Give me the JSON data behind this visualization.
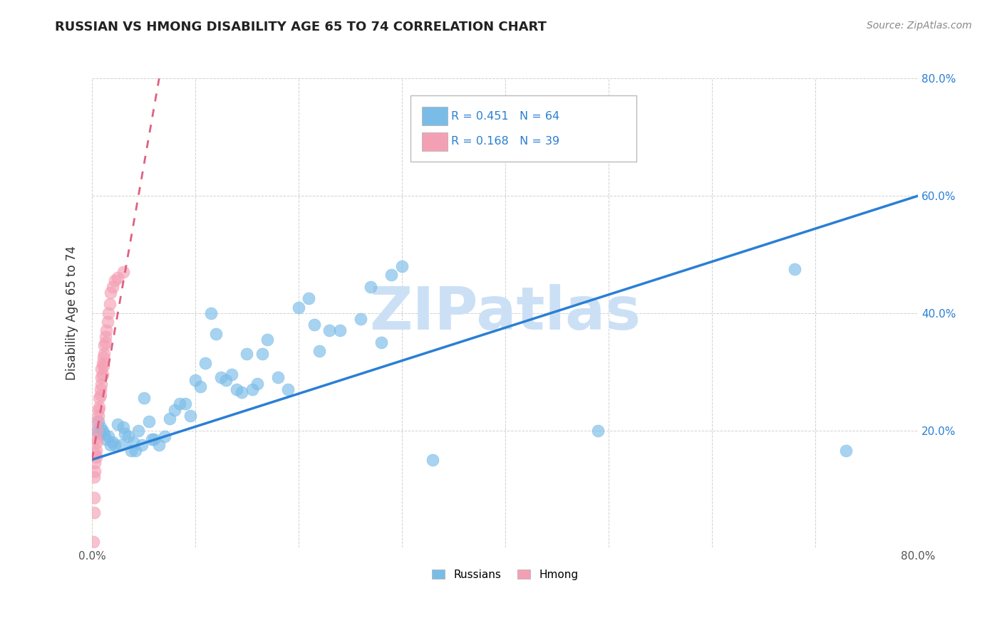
{
  "title": "RUSSIAN VS HMONG DISABILITY AGE 65 TO 74 CORRELATION CHART",
  "source": "Source: ZipAtlas.com",
  "ylabel": "Disability Age 65 to 74",
  "xlim": [
    0.0,
    0.8
  ],
  "ylim": [
    0.0,
    0.8
  ],
  "xtick_positions": [
    0.0,
    0.1,
    0.2,
    0.3,
    0.4,
    0.5,
    0.6,
    0.7,
    0.8
  ],
  "xticklabels": [
    "0.0%",
    "",
    "",
    "",
    "",
    "",
    "",
    "",
    "80.0%"
  ],
  "ytick_positions": [
    0.0,
    0.2,
    0.4,
    0.6,
    0.8
  ],
  "yticklabels_right": [
    "",
    "20.0%",
    "40.0%",
    "60.0%",
    "80.0%"
  ],
  "russian_R": 0.451,
  "russian_N": 64,
  "hmong_R": 0.168,
  "hmong_N": 39,
  "russian_color": "#7abce8",
  "hmong_color": "#f4a0b4",
  "trendline_russian_color": "#2a7fd4",
  "trendline_hmong_color": "#e06080",
  "watermark": "ZIPatlas",
  "watermark_color": "#cce0f5",
  "russians_x": [
    0.005,
    0.006,
    0.007,
    0.008,
    0.01,
    0.012,
    0.014,
    0.016,
    0.018,
    0.02,
    0.022,
    0.025,
    0.028,
    0.03,
    0.032,
    0.035,
    0.038,
    0.04,
    0.042,
    0.045,
    0.048,
    0.05,
    0.055,
    0.058,
    0.06,
    0.065,
    0.07,
    0.075,
    0.08,
    0.085,
    0.09,
    0.095,
    0.1,
    0.105,
    0.11,
    0.115,
    0.12,
    0.125,
    0.13,
    0.135,
    0.14,
    0.145,
    0.15,
    0.155,
    0.16,
    0.165,
    0.17,
    0.18,
    0.19,
    0.2,
    0.21,
    0.215,
    0.22,
    0.23,
    0.24,
    0.26,
    0.27,
    0.28,
    0.29,
    0.3,
    0.33,
    0.49,
    0.68,
    0.73
  ],
  "russians_y": [
    0.2,
    0.215,
    0.195,
    0.205,
    0.2,
    0.195,
    0.185,
    0.19,
    0.175,
    0.18,
    0.175,
    0.21,
    0.175,
    0.205,
    0.195,
    0.19,
    0.165,
    0.18,
    0.165,
    0.2,
    0.175,
    0.255,
    0.215,
    0.185,
    0.185,
    0.175,
    0.19,
    0.22,
    0.235,
    0.245,
    0.245,
    0.225,
    0.285,
    0.275,
    0.315,
    0.4,
    0.365,
    0.29,
    0.285,
    0.295,
    0.27,
    0.265,
    0.33,
    0.27,
    0.28,
    0.33,
    0.355,
    0.29,
    0.27,
    0.41,
    0.425,
    0.38,
    0.335,
    0.37,
    0.37,
    0.39,
    0.445,
    0.35,
    0.465,
    0.48,
    0.15,
    0.2,
    0.475,
    0.165
  ],
  "hmong_x": [
    0.001,
    0.002,
    0.002,
    0.003,
    0.003,
    0.004,
    0.004,
    0.005,
    0.005,
    0.005,
    0.006,
    0.006,
    0.007,
    0.007,
    0.008,
    0.008,
    0.009,
    0.009,
    0.009,
    0.01,
    0.01,
    0.011,
    0.011,
    0.012,
    0.012,
    0.013,
    0.013,
    0.014,
    0.015,
    0.016,
    0.017,
    0.018,
    0.02,
    0.022,
    0.025,
    0.03,
    0.002,
    0.003,
    0.004
  ],
  "hmong_y": [
    0.01,
    0.06,
    0.12,
    0.13,
    0.16,
    0.165,
    0.185,
    0.18,
    0.2,
    0.215,
    0.225,
    0.235,
    0.24,
    0.255,
    0.26,
    0.27,
    0.278,
    0.29,
    0.305,
    0.295,
    0.315,
    0.31,
    0.325,
    0.33,
    0.345,
    0.35,
    0.36,
    0.37,
    0.385,
    0.4,
    0.415,
    0.435,
    0.445,
    0.455,
    0.46,
    0.47,
    0.085,
    0.145,
    0.155
  ]
}
